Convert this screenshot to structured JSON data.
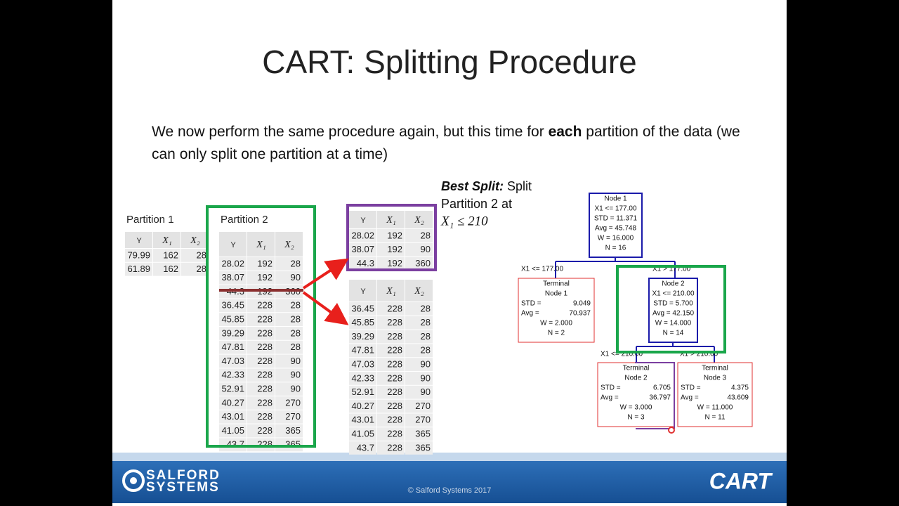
{
  "title": "CART: Splitting Procedure",
  "body": {
    "parts": [
      "We now perform the same procedure again, but this time for ",
      "each",
      " partition of the data (we can only split one partition at a time)"
    ]
  },
  "best_split": {
    "label": "Best Split:",
    "text": [
      "Split",
      "Partition 2 at"
    ],
    "condition": "X₁ ≤ 210"
  },
  "tables": [
    {
      "caption": "Partition 1",
      "header": [
        "Y",
        "X₁",
        "X₂"
      ],
      "rows": [
        [
          79.99,
          162,
          28
        ],
        [
          61.89,
          162,
          28
        ]
      ]
    },
    {
      "caption": "Partition 2",
      "header": [
        "Y",
        "X₁",
        "X₂"
      ],
      "rows": [
        [
          28.02,
          192,
          28
        ],
        [
          38.07,
          192,
          90
        ],
        [
          44.3,
          192,
          360
        ],
        [
          36.45,
          228,
          28
        ],
        [
          45.85,
          228,
          28
        ],
        [
          39.29,
          228,
          28
        ],
        [
          47.81,
          228,
          28
        ],
        [
          47.03,
          228,
          90
        ],
        [
          42.33,
          228,
          90
        ],
        [
          52.91,
          228,
          90
        ],
        [
          40.27,
          228,
          270
        ],
        [
          43.01,
          228,
          270
        ],
        [
          41.05,
          228,
          365
        ],
        [
          43.7,
          228,
          365
        ]
      ]
    },
    {
      "header": [
        "Y",
        "X₁",
        "X₂"
      ],
      "rows": [
        [
          28.02,
          192,
          28
        ],
        [
          38.07,
          192,
          90
        ],
        [
          44.3,
          192,
          360
        ]
      ]
    },
    {
      "header": [
        "Y",
        "X₁",
        "X₂"
      ],
      "rows": [
        [
          36.45,
          228,
          28
        ],
        [
          45.85,
          228,
          28
        ],
        [
          39.29,
          228,
          28
        ],
        [
          47.81,
          228,
          28
        ],
        [
          47.03,
          228,
          90
        ],
        [
          42.33,
          228,
          90
        ],
        [
          52.91,
          228,
          90
        ],
        [
          40.27,
          228,
          270
        ],
        [
          43.01,
          228,
          270
        ],
        [
          41.05,
          228,
          365
        ],
        [
          43.7,
          228,
          365
        ]
      ]
    }
  ],
  "tree": {
    "nodes": [
      {
        "lines": [
          "Node 1",
          "X1 <= 177.00",
          "STD = 11.371",
          "Avg = 45.748",
          "W = 16.000",
          "N = 16"
        ]
      },
      {
        "lines": [
          "Terminal",
          "Node 1",
          [
            "STD =",
            "9.049"
          ],
          [
            "Avg =",
            "70.937"
          ],
          "W = 2.000",
          "N = 2"
        ]
      },
      {
        "lines": [
          "Node 2",
          "X1 <= 210.00",
          "STD = 5.700",
          "Avg = 42.150",
          "W = 14.000",
          "N = 14"
        ]
      },
      {
        "lines": [
          "Terminal",
          "Node 2",
          [
            "STD =",
            "6.705"
          ],
          [
            "Avg =",
            "36.797"
          ],
          "W = 3.000",
          "N = 3"
        ]
      },
      {
        "lines": [
          "Terminal",
          "Node 3",
          [
            "STD =",
            "4.375"
          ],
          [
            "Avg =",
            "43.609"
          ],
          "W = 11.000",
          "N = 11"
        ]
      }
    ],
    "edges": [
      "X1 <= 177.00",
      "X1 > 177.00",
      "X1 <= 210.00",
      "X1 > 210.00"
    ]
  },
  "footer": {
    "logo": [
      "SALFORD",
      "SYSTEMS"
    ],
    "copyright": "© Salford Systems 2017",
    "product": "CART"
  }
}
